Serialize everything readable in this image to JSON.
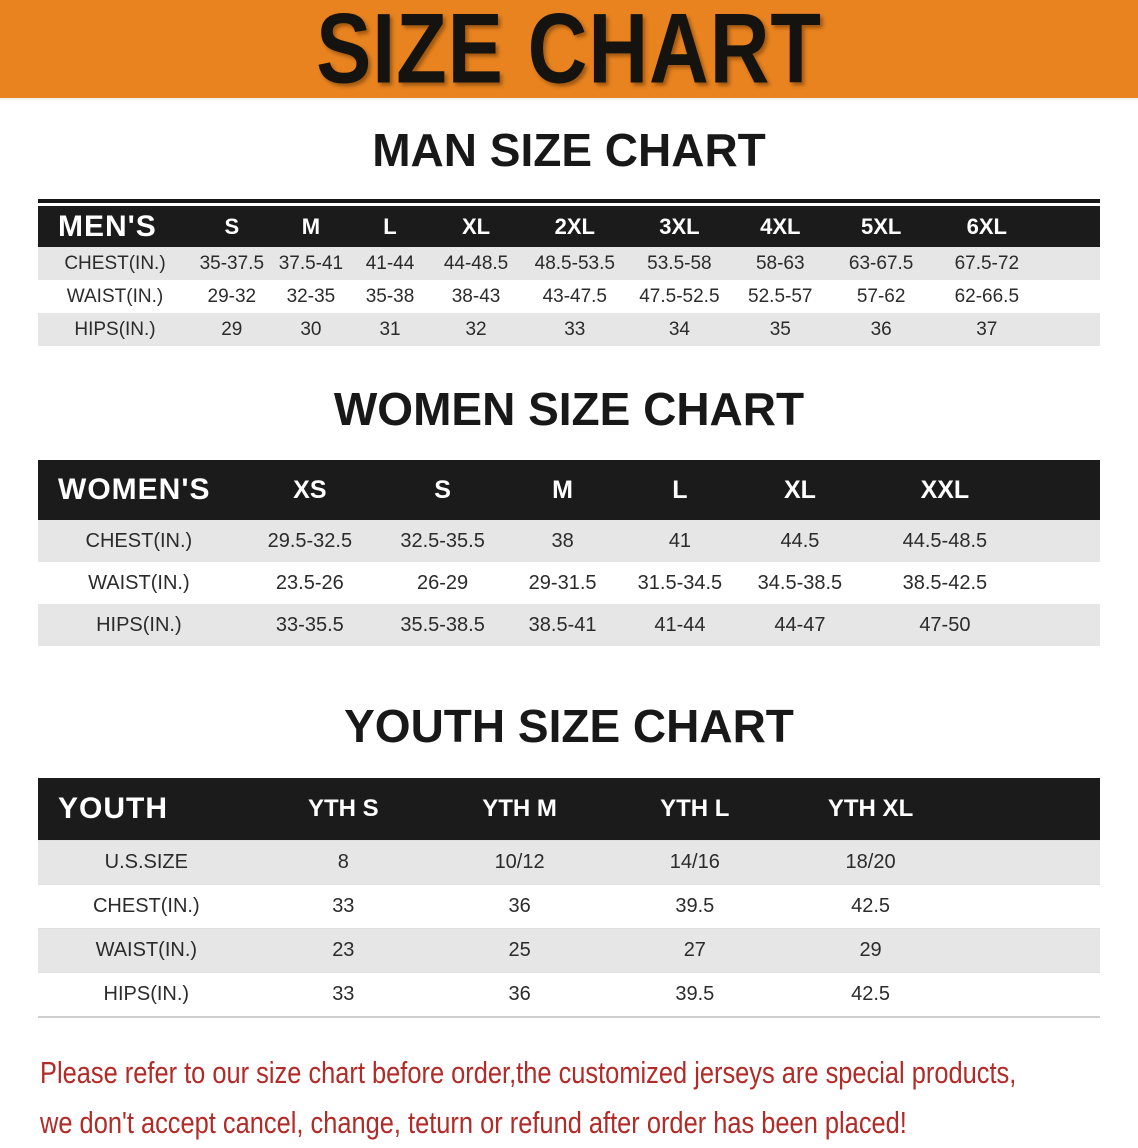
{
  "banner": {
    "title": "SIZE CHART"
  },
  "colors": {
    "banner_bg": "#E8831F",
    "header_bg": "#1B1B1B",
    "row_alt": "#E6E6E6",
    "disclaimer": "#B12B28"
  },
  "sections": [
    {
      "heading": "MAN SIZE CHART",
      "table": {
        "label": "MEN'S",
        "sizes": [
          "S",
          "M",
          "L",
          "XL",
          "2XL",
          "3XL",
          "4XL",
          "5XL",
          "6XL"
        ],
        "rows": [
          {
            "label": "CHEST(IN.)",
            "values": [
              "35-37.5",
              "37.5-41",
              "41-44",
              "44-48.5",
              "48.5-53.5",
              "53.5-58",
              "58-63",
              "63-67.5",
              "67.5-72"
            ]
          },
          {
            "label": "WAIST(IN.)",
            "values": [
              "29-32",
              "32-35",
              "35-38",
              "38-43",
              "43-47.5",
              "47.5-52.5",
              "52.5-57",
              "57-62",
              "62-66.5"
            ]
          },
          {
            "label": "HIPS(IN.)",
            "values": [
              "29",
              "30",
              "31",
              "32",
              "33",
              "34",
              "35",
              "36",
              "37"
            ]
          }
        ]
      }
    },
    {
      "heading": "WOMEN SIZE CHART",
      "table": {
        "label": "WOMEN'S",
        "sizes": [
          "XS",
          "S",
          "M",
          "L",
          "XL",
          "XXL"
        ],
        "rows": [
          {
            "label": "CHEST(IN.)",
            "values": [
              "29.5-32.5",
              "32.5-35.5",
              "38",
              "41",
              "44.5",
              "44.5-48.5"
            ]
          },
          {
            "label": "WAIST(IN.)",
            "values": [
              "23.5-26",
              "26-29",
              "29-31.5",
              "31.5-34.5",
              "34.5-38.5",
              "38.5-42.5"
            ]
          },
          {
            "label": "HIPS(IN.)",
            "values": [
              "33-35.5",
              "35.5-38.5",
              "38.5-41",
              "41-44",
              "44-47",
              "47-50"
            ]
          }
        ]
      }
    },
    {
      "heading": "YOUTH SIZE CHART",
      "table": {
        "label": "YOUTH",
        "sizes": [
          "YTH S",
          "YTH M",
          "YTH L",
          "YTH XL"
        ],
        "rows": [
          {
            "label": "U.S.SIZE",
            "values": [
              "8",
              "10/12",
              "14/16",
              "18/20"
            ]
          },
          {
            "label": "CHEST(IN.)",
            "values": [
              "33",
              "36",
              "39.5",
              "42.5"
            ]
          },
          {
            "label": "WAIST(IN.)",
            "values": [
              "23",
              "25",
              "27",
              "29"
            ]
          },
          {
            "label": "HIPS(IN.)",
            "values": [
              "33",
              "36",
              "39.5",
              "42.5"
            ]
          }
        ]
      }
    }
  ],
  "disclaimer": {
    "line1": "Please refer to our size chart before order,the customized jerseys are special products,",
    "line2": "we don't accept cancel, change, teturn or refund after order has been placed!"
  }
}
